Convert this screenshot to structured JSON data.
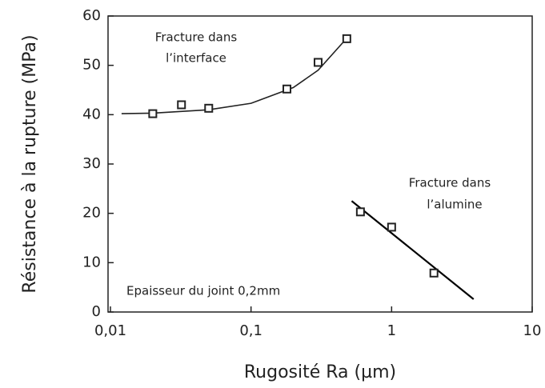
{
  "chart_data": {
    "type": "scatter",
    "xlabel": "Rugosité Ra (µm)",
    "ylabel": "Résistance à la rupture (MPa)",
    "xscale": "log",
    "xlim": [
      0.01,
      10
    ],
    "xticks": [
      {
        "value": 0.01,
        "label": "0,01"
      },
      {
        "value": 0.1,
        "label": "0,1"
      },
      1,
      10
    ],
    "ylim": [
      0,
      60
    ],
    "yticks": [
      0,
      10,
      20,
      30,
      40,
      50,
      60
    ],
    "series": [
      {
        "color": "#222222",
        "x": [
          0.02,
          0.032,
          0.05,
          0.18,
          0.3,
          0.48
        ],
        "values": [
          40.2,
          42,
          41.3,
          45.2,
          50.6,
          55.4
        ]
      },
      {
        "color": "#222222",
        "x": [
          0.6,
          1.0,
          2.0
        ],
        "values": [
          20.3,
          17.2,
          7.9
        ]
      }
    ],
    "fits": [
      {
        "color": "#222222",
        "x": [
          0.012,
          0.02,
          0.05,
          0.1,
          0.2,
          0.3,
          0.48
        ],
        "values": [
          40.2,
          40.3,
          41,
          42.3,
          45.5,
          49,
          55.5
        ]
      },
      {
        "color": "#000000",
        "x": [
          0.52,
          3.83
        ],
        "values": [
          22.5,
          2.6
        ]
      }
    ],
    "annotations": [
      "Fracture dans",
      "l’interface",
      "Fracture dans",
      "l’alumine",
      "Epaisseur du joint 0,2mm"
    ]
  }
}
